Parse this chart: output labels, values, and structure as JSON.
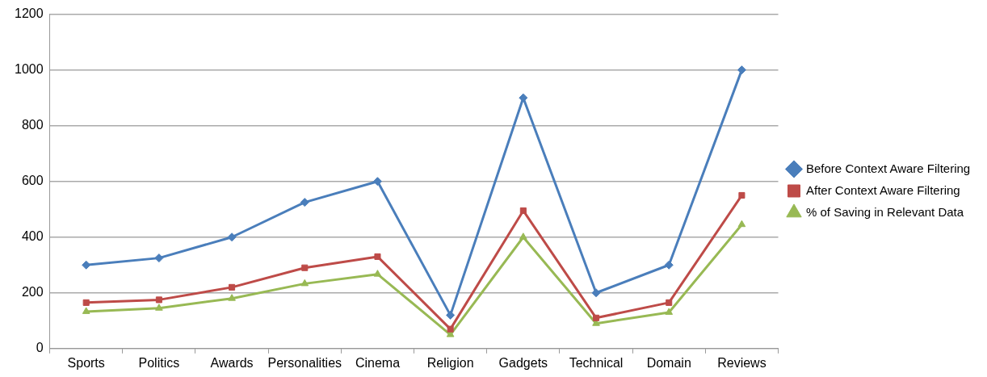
{
  "chart_data": {
    "type": "line",
    "categories": [
      "Sports",
      "Politics",
      "Awards",
      "Personalities",
      "Cinema",
      "Religion",
      "Gadgets",
      "Technical",
      "Domain",
      "Reviews"
    ],
    "series": [
      {
        "name": "Before Context Aware Filtering",
        "color": "#4a7ebb",
        "marker": "diamond",
        "values": [
          300,
          325,
          400,
          525,
          600,
          120,
          900,
          200,
          300,
          1000
        ]
      },
      {
        "name": "After Context Aware Filtering",
        "color": "#be4b48",
        "marker": "square",
        "values": [
          165,
          175,
          220,
          290,
          330,
          70,
          495,
          110,
          165,
          550
        ]
      },
      {
        "name": "% of Saving in Relevant Data",
        "color": "#98b954",
        "marker": "triangle",
        "values": [
          133,
          145,
          180,
          233,
          267,
          50,
          400,
          90,
          130,
          445
        ]
      }
    ],
    "ylim": [
      0,
      1200
    ],
    "yticks": [
      0,
      200,
      400,
      600,
      800,
      1000,
      1200
    ],
    "grid": "y",
    "legend": "right",
    "line_style": "solid"
  }
}
